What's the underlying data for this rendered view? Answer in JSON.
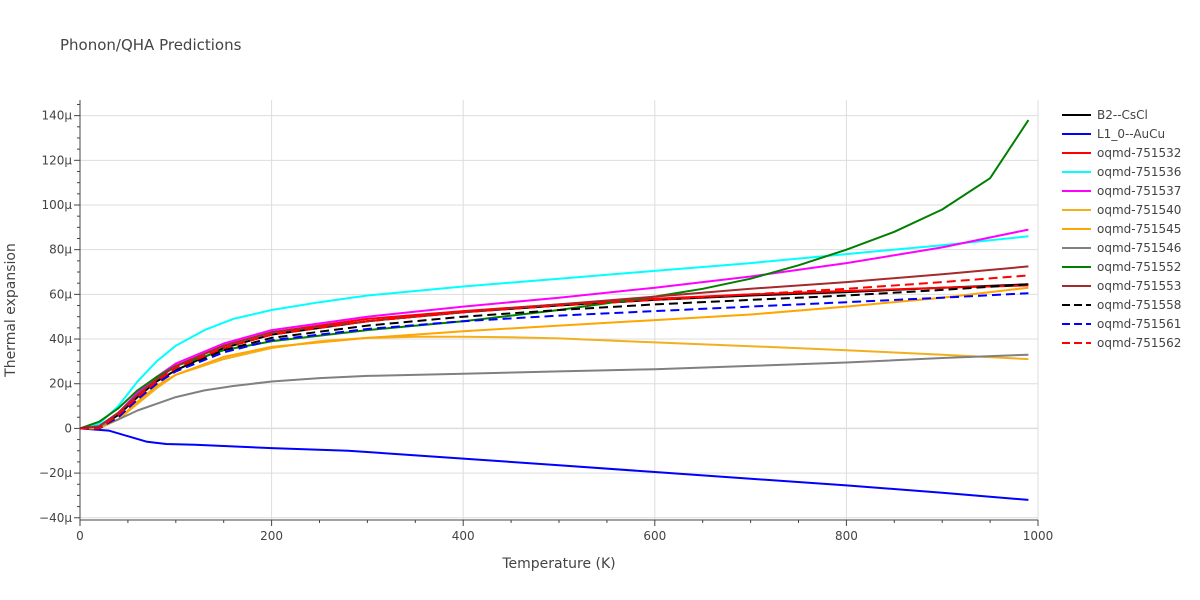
{
  "chart_data": {
    "type": "line",
    "title": "Phonon/QHA Predictions",
    "xlabel": "Temperature (K)",
    "ylabel": "Thermal expansion",
    "xlim": [
      0,
      1000
    ],
    "ylim": [
      -41,
      147
    ],
    "x_ticks": [
      0,
      200,
      400,
      600,
      800,
      1000
    ],
    "x_tick_labels": [
      "0",
      "200",
      "400",
      "600",
      "800",
      "1000"
    ],
    "y_ticks": [
      -40,
      -20,
      0,
      20,
      40,
      60,
      80,
      100,
      120,
      140
    ],
    "y_tick_labels": [
      "−40µ",
      "−20µ",
      "0",
      "20µ",
      "40µ",
      "60µ",
      "80µ",
      "100µ",
      "120µ",
      "140µ"
    ],
    "grid": true,
    "legend_position": "right",
    "series": [
      {
        "name": "B2--CsCl",
        "color": "#000000",
        "dash": "solid",
        "x": [
          0,
          20,
          40,
          60,
          80,
          100,
          150,
          200,
          300,
          400,
          500,
          600,
          700,
          800,
          900,
          990
        ],
        "y": [
          0,
          0.5,
          6,
          14,
          21,
          26,
          36,
          42,
          48,
          52,
          55,
          57.5,
          59.5,
          61,
          63,
          64.5
        ]
      },
      {
        "name": "L1_0--AuCu",
        "color": "#0000ff",
        "dash": "solid",
        "x": [
          0,
          30,
          50,
          70,
          90,
          120,
          200,
          280,
          400,
          500,
          600,
          700,
          800,
          900,
          990
        ],
        "y": [
          0,
          -1,
          -3.5,
          -6,
          -7,
          -7.3,
          -8.8,
          -10,
          -13.5,
          -16.5,
          -19.5,
          -22.5,
          -25.5,
          -28.8,
          -32
        ]
      },
      {
        "name": "oqmd-751532",
        "color": "#ff0000",
        "dash": "solid",
        "x": [
          0,
          20,
          40,
          60,
          80,
          100,
          150,
          200,
          300,
          400,
          500,
          600,
          700,
          800,
          900,
          990
        ],
        "y": [
          0,
          1,
          7,
          15,
          22,
          28,
          37,
          43,
          49,
          52.5,
          55.5,
          58,
          60,
          61.5,
          63,
          64
        ]
      },
      {
        "name": "oqmd-751536",
        "color": "#00ffff",
        "dash": "solid",
        "x": [
          0,
          20,
          40,
          60,
          80,
          100,
          130,
          160,
          200,
          250,
          300,
          400,
          500,
          600,
          700,
          800,
          900,
          990
        ],
        "y": [
          0,
          2,
          10,
          21,
          30,
          37,
          44,
          49,
          53,
          56.5,
          59.5,
          63.5,
          67,
          70.5,
          74,
          78,
          82,
          86
        ]
      },
      {
        "name": "oqmd-751537",
        "color": "#ff00ff",
        "dash": "solid",
        "x": [
          0,
          20,
          40,
          60,
          80,
          100,
          150,
          200,
          300,
          400,
          500,
          600,
          700,
          800,
          900,
          990
        ],
        "y": [
          0,
          1,
          7,
          16,
          23,
          29,
          38,
          44,
          50,
          54.5,
          58.5,
          63,
          68,
          74,
          81,
          89
        ]
      },
      {
        "name": "oqmd-751540",
        "color": "#f2b01c",
        "dash": "solid",
        "x": [
          0,
          20,
          40,
          60,
          80,
          100,
          150,
          200,
          250,
          300,
          350,
          400,
          450,
          500,
          600,
          700,
          800,
          900,
          990
        ],
        "y": [
          0,
          0,
          4,
          11,
          18,
          24,
          31,
          36,
          39,
          40.5,
          41,
          41,
          40.8,
          40.3,
          38.5,
          36.8,
          35,
          33,
          31
        ]
      },
      {
        "name": "oqmd-751545",
        "color": "#ffa500",
        "dash": "solid",
        "x": [
          0,
          20,
          40,
          60,
          80,
          100,
          150,
          200,
          300,
          400,
          500,
          600,
          700,
          800,
          900,
          990
        ],
        "y": [
          0,
          0,
          4,
          12,
          19,
          24,
          32,
          36.5,
          40.5,
          43.5,
          46,
          48.5,
          51,
          54.5,
          58.5,
          63
        ]
      },
      {
        "name": "oqmd-751546",
        "color": "#808080",
        "dash": "solid",
        "x": [
          0,
          20,
          40,
          60,
          80,
          100,
          130,
          160,
          200,
          250,
          300,
          400,
          500,
          600,
          700,
          800,
          900,
          990
        ],
        "y": [
          0,
          1,
          4,
          8,
          11,
          14,
          17,
          19,
          21,
          22.5,
          23.5,
          24.5,
          25.5,
          26.5,
          28,
          29.5,
          31.5,
          33
        ]
      },
      {
        "name": "oqmd-751552",
        "color": "#008000",
        "dash": "solid",
        "x": [
          0,
          20,
          40,
          60,
          80,
          100,
          150,
          200,
          300,
          400,
          500,
          550,
          600,
          650,
          700,
          750,
          800,
          850,
          900,
          950,
          990
        ],
        "y": [
          0,
          3,
          9,
          17,
          23,
          28,
          35,
          39,
          44,
          48,
          53,
          56,
          59,
          62.5,
          67,
          73,
          80,
          88,
          98,
          112,
          138
        ]
      },
      {
        "name": "oqmd-751553",
        "color": "#a52a2a",
        "dash": "solid",
        "x": [
          0,
          20,
          40,
          60,
          80,
          100,
          150,
          200,
          300,
          400,
          500,
          600,
          700,
          800,
          900,
          990
        ],
        "y": [
          0,
          1,
          7,
          15,
          22,
          28,
          37,
          43,
          48,
          52,
          55.5,
          59,
          62.5,
          65.5,
          69,
          72.5
        ]
      },
      {
        "name": "oqmd-751558",
        "color": "#000000",
        "dash": "dash",
        "x": [
          0,
          20,
          40,
          60,
          80,
          100,
          150,
          200,
          300,
          400,
          500,
          600,
          700,
          800,
          900,
          990
        ],
        "y": [
          0,
          0,
          5,
          13,
          20,
          26,
          35,
          40.5,
          46,
          50,
          53,
          55.5,
          57.5,
          59.5,
          62,
          64.5
        ]
      },
      {
        "name": "oqmd-751561",
        "color": "#0000ff",
        "dash": "dash",
        "x": [
          0,
          20,
          40,
          60,
          80,
          100,
          150,
          200,
          300,
          400,
          500,
          600,
          700,
          800,
          900,
          990
        ],
        "y": [
          0,
          0,
          5,
          13,
          20,
          25.5,
          34,
          39.5,
          44.5,
          48,
          50.5,
          52.5,
          54.5,
          56.5,
          58.5,
          60.5
        ]
      },
      {
        "name": "oqmd-751562",
        "color": "#ff0000",
        "dash": "dash",
        "x": [
          0,
          20,
          40,
          60,
          80,
          100,
          150,
          200,
          300,
          400,
          500,
          600,
          700,
          800,
          900,
          990
        ],
        "y": [
          0,
          0,
          6,
          14,
          21,
          27,
          36,
          42,
          48,
          52,
          55,
          57.5,
          60,
          62.5,
          65.5,
          68.5
        ]
      }
    ]
  }
}
